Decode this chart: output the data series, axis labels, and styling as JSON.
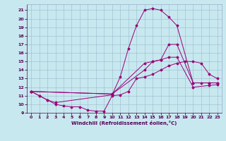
{
  "xlabel": "Windchill (Refroidissement éolien,°C)",
  "bg_color": "#c8e8f0",
  "line_color": "#990077",
  "xlim": [
    -0.5,
    23.5
  ],
  "ylim": [
    9,
    21.7
  ],
  "yticks": [
    9,
    10,
    11,
    12,
    13,
    14,
    15,
    16,
    17,
    18,
    19,
    20,
    21
  ],
  "xticks": [
    0,
    1,
    2,
    3,
    4,
    5,
    6,
    7,
    8,
    9,
    10,
    11,
    12,
    13,
    14,
    15,
    16,
    17,
    18,
    19,
    20,
    21,
    22,
    23
  ],
  "curve1_x": [
    0,
    1,
    2,
    3,
    4,
    5,
    6,
    7,
    8,
    9,
    10,
    11,
    12,
    13,
    14,
    15,
    16,
    17,
    18,
    19,
    20,
    21,
    22,
    23
  ],
  "curve1_y": [
    11.5,
    11.0,
    10.5,
    10.0,
    9.8,
    9.7,
    9.7,
    9.3,
    9.2,
    9.2,
    11.0,
    11.1,
    11.5,
    13.0,
    13.2,
    13.5,
    14.0,
    14.5,
    14.8,
    15.0,
    15.0,
    14.8,
    13.5,
    13.0
  ],
  "curve2_x": [
    0,
    1,
    2,
    3,
    10,
    11,
    12,
    13,
    14,
    15,
    16,
    17,
    18,
    20,
    22,
    23
  ],
  "curve2_y": [
    11.5,
    11.0,
    10.5,
    10.2,
    11.1,
    13.2,
    16.5,
    19.2,
    21.0,
    21.2,
    21.0,
    20.2,
    19.2,
    12.5,
    12.5,
    12.5
  ],
  "curve3_x": [
    0,
    10,
    14,
    15,
    16,
    17,
    18,
    20,
    21,
    22,
    23
  ],
  "curve3_y": [
    11.5,
    11.2,
    14.8,
    15.0,
    15.2,
    17.0,
    17.0,
    12.5,
    12.5,
    12.5,
    12.5
  ],
  "curve4_x": [
    0,
    10,
    14,
    15,
    16,
    17,
    18,
    20,
    22,
    23
  ],
  "curve4_y": [
    11.5,
    11.2,
    14.0,
    15.0,
    15.2,
    15.5,
    15.5,
    12.0,
    12.2,
    12.3
  ]
}
